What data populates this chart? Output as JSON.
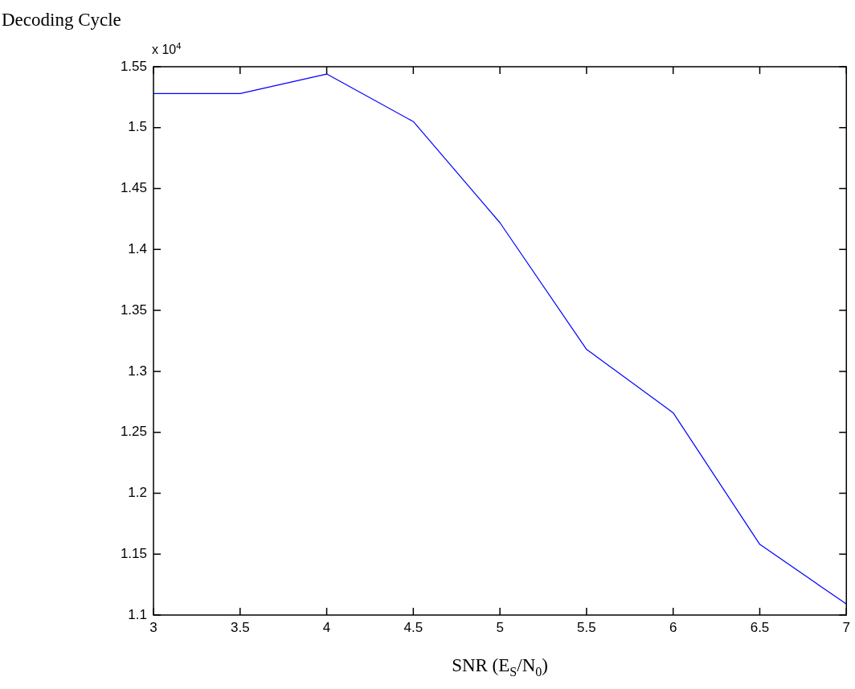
{
  "chart_data": {
    "type": "line",
    "ylabel": "Decoding Cycle",
    "xlabel": "SNR (E$_{S}$/N$_{0}$)",
    "annotations": [
      "x 10$^{4}$"
    ],
    "x": [
      3,
      3.5,
      4,
      4.5,
      5,
      5.5,
      6,
      6.5,
      7
    ],
    "series": [
      {
        "color": "#0000ff",
        "values": [
          1.528,
          1.528,
          1.544,
          1.505,
          1.422,
          1.318,
          1.266,
          1.158,
          1.109
        ]
      }
    ],
    "xlim": [
      3,
      7
    ],
    "xticks": [
      3,
      3.5,
      4,
      4.5,
      5,
      5.5,
      6,
      6.5,
      7
    ],
    "ylim": [
      1.1,
      1.55
    ],
    "yticks": [
      1.1,
      1.15,
      1.2,
      1.25,
      1.3,
      1.35,
      1.4,
      1.45,
      1.5,
      1.55
    ],
    "grid": false,
    "legend": false,
    "marker": "none",
    "line_style": "solid"
  }
}
